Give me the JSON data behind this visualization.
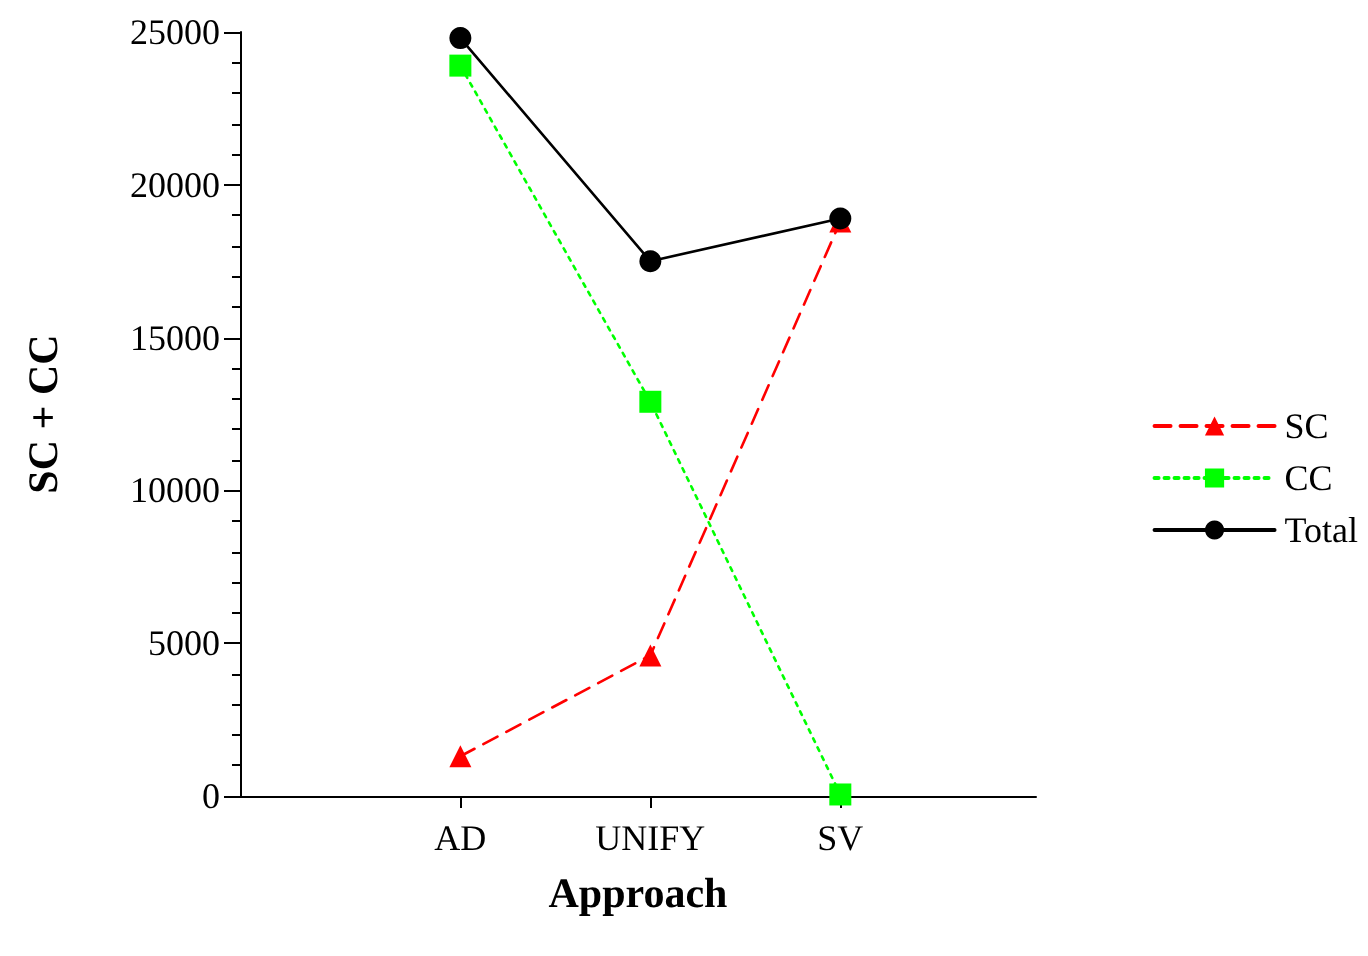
{
  "chart_data": {
    "type": "line",
    "xlabel": "Approach",
    "ylabel": "SC + CC",
    "categories": [
      "AD",
      "UNIFY",
      "SV"
    ],
    "series": [
      {
        "name": "SC",
        "color": "#ff0000",
        "values": [
          1300,
          4600,
          18800
        ],
        "marker": "triangle",
        "line_style": "dashed"
      },
      {
        "name": "CC",
        "color": "#00ff00",
        "values": [
          23900,
          12900,
          50
        ],
        "marker": "square",
        "line_style": "dotted"
      },
      {
        "name": "Total",
        "color": "#000000",
        "values": [
          24800,
          17500,
          18900
        ],
        "marker": "circle",
        "line_style": "solid"
      }
    ],
    "ylim": [
      0,
      25000
    ],
    "yticks": [
      0,
      5000,
      10000,
      15000,
      20000,
      25000
    ],
    "grid": false,
    "legend": "right"
  }
}
